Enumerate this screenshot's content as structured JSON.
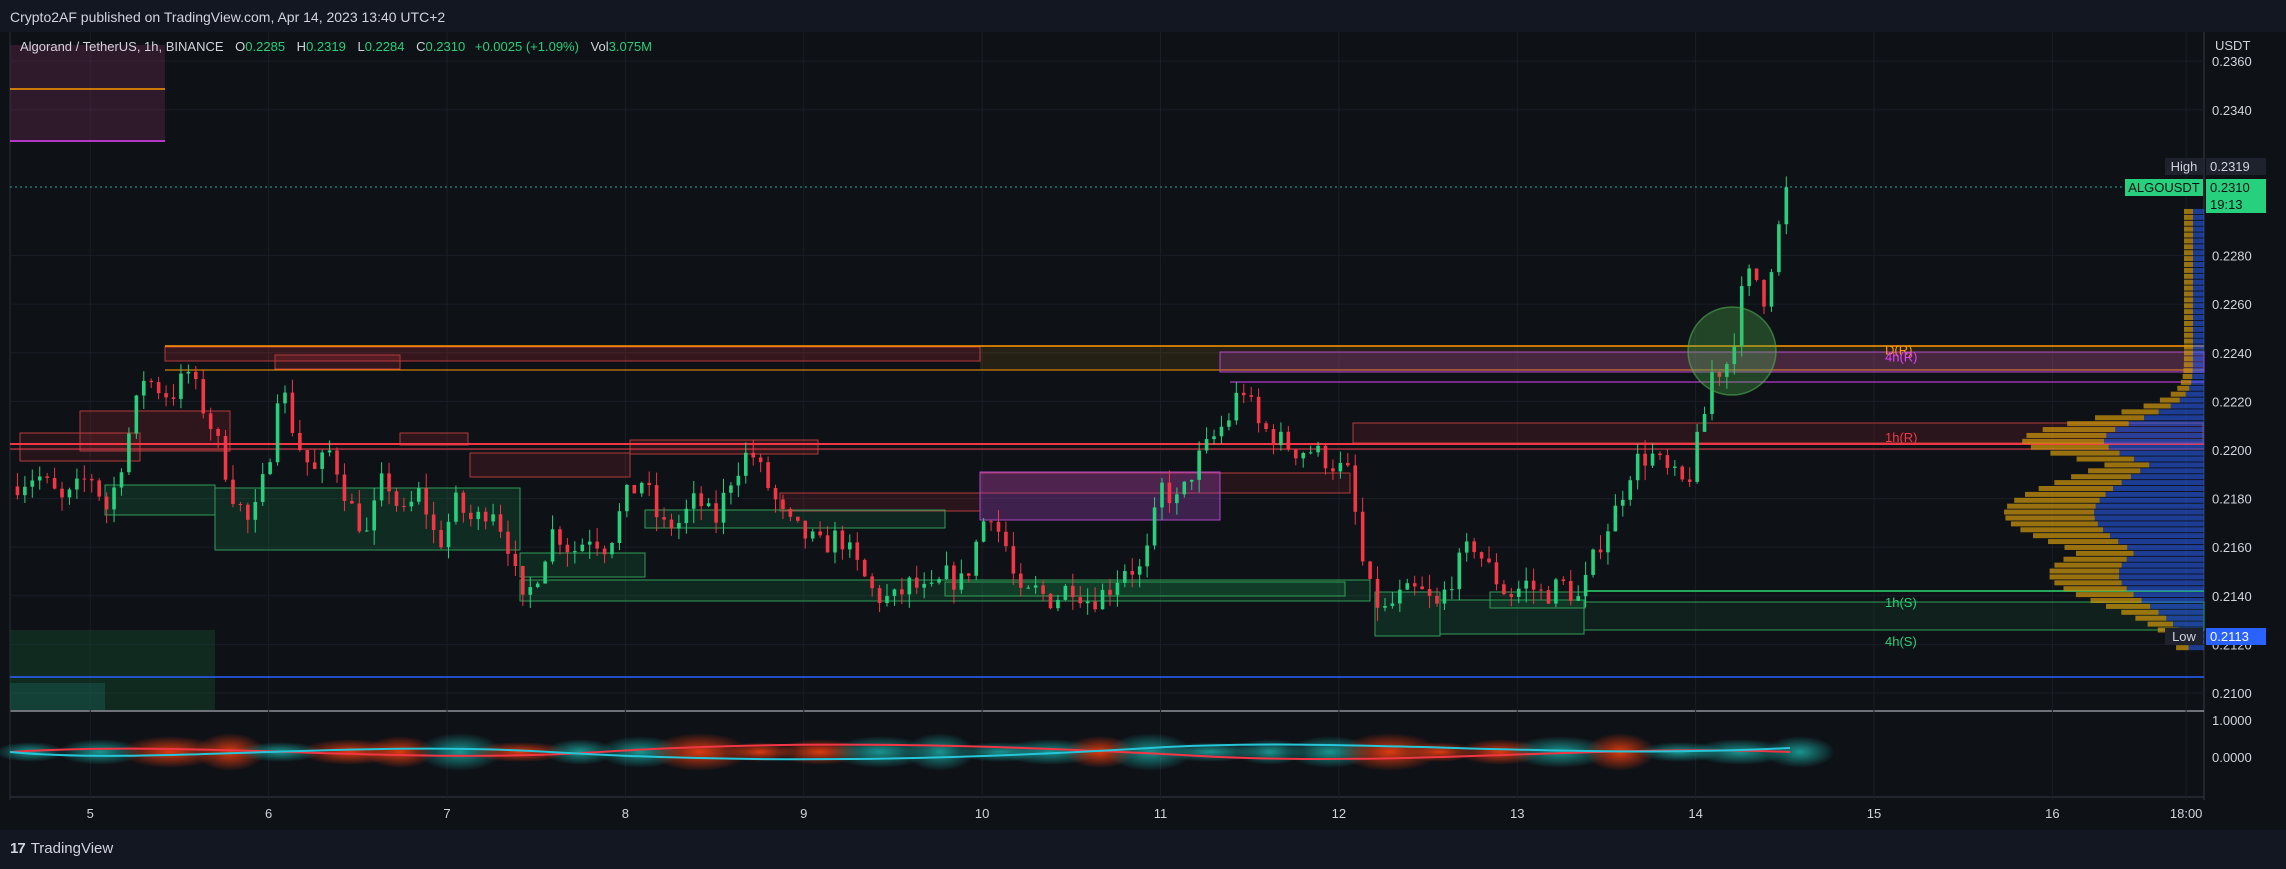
{
  "header": {
    "publish_text": "Crypto2AF published on TradingView.com, Apr 14, 2023 13:40 UTC+2"
  },
  "legend": {
    "symbol": "Algorand / TetherUS, 1h, BINANCE",
    "open_key": "O",
    "open": "0.2285",
    "high_key": "H",
    "high": "0.2319",
    "low_key": "L",
    "low": "0.2284",
    "close_key": "C",
    "close": "0.2310",
    "change": "+0.0025 (+1.09%)",
    "vol_key": "Vol",
    "vol": "3.075M"
  },
  "footer": {
    "brand": "TradingView",
    "brand_glyph": "17"
  },
  "colors": {
    "background": "#0e1116",
    "up": "#26d07c",
    "down": "#f23645",
    "grid": "#1a1e27",
    "axis_text": "#d1d4dc",
    "vp_blue": "#2962ff",
    "vp_orange": "#c8930e"
  },
  "chart_data": {
    "type": "candlestick",
    "symbol": "ALGOUSDT",
    "timeframe": "1h",
    "y_axis": {
      "unit": "USDT",
      "ylim": [
        0.2093,
        0.2372
      ],
      "ticks": [
        "0.2360",
        "0.2340",
        "0.2280",
        "0.2260",
        "0.2240",
        "0.2220",
        "0.2200",
        "0.2180",
        "0.2160",
        "0.2140",
        "0.2120",
        "0.2100"
      ]
    },
    "x_axis": {
      "xlim": [
        4.55,
        16.85
      ],
      "ticks": [
        {
          "label": "5",
          "x": 5
        },
        {
          "label": "6",
          "x": 6
        },
        {
          "label": "7",
          "x": 7
        },
        {
          "label": "8",
          "x": 8
        },
        {
          "label": "9",
          "x": 9
        },
        {
          "label": "10",
          "x": 10
        },
        {
          "label": "11",
          "x": 11
        },
        {
          "label": "12",
          "x": 12
        },
        {
          "label": "13",
          "x": 13
        },
        {
          "label": "14",
          "x": 14
        },
        {
          "label": "15",
          "x": 15
        },
        {
          "label": "16",
          "x": 16
        },
        {
          "label": "18:00",
          "x": 16.75
        }
      ]
    },
    "price_marks": {
      "high_label": "High",
      "high_value": "0.2319",
      "symbol_label": "ALGOUSDT",
      "last_value": "0.2310",
      "countdown": "19:13",
      "low_label": "Low",
      "low_value": "0.2113"
    },
    "level_labels": [
      {
        "text": "D(R)",
        "y": 0.2241,
        "color": "#ff9800"
      },
      {
        "text": "4h(R)",
        "y": 0.2238,
        "color": "#e040fb"
      },
      {
        "text": "1h(R)",
        "y": 0.2205,
        "color": "#f23645"
      },
      {
        "text": "1h(S)",
        "y": 0.2137,
        "color": "#26d07c"
      },
      {
        "text": "4h(S)",
        "y": 0.2121,
        "color": "#26d07c"
      }
    ],
    "anchors": [
      [
        4.55,
        0.2185
      ],
      [
        4.7,
        0.219
      ],
      [
        4.85,
        0.2178
      ],
      [
        5.0,
        0.219
      ],
      [
        5.1,
        0.2175
      ],
      [
        5.2,
        0.2202
      ],
      [
        5.3,
        0.223
      ],
      [
        5.45,
        0.2222
      ],
      [
        5.55,
        0.2232
      ],
      [
        5.7,
        0.2206
      ],
      [
        5.8,
        0.2182
      ],
      [
        5.9,
        0.2168
      ],
      [
        6.0,
        0.2195
      ],
      [
        6.06,
        0.223
      ],
      [
        6.15,
        0.2205
      ],
      [
        6.25,
        0.219
      ],
      [
        6.35,
        0.22
      ],
      [
        6.45,
        0.2178
      ],
      [
        6.55,
        0.2165
      ],
      [
        6.65,
        0.219
      ],
      [
        6.75,
        0.2172
      ],
      [
        6.85,
        0.2183
      ],
      [
        6.95,
        0.216
      ],
      [
        7.05,
        0.2178
      ],
      [
        7.15,
        0.217
      ],
      [
        7.25,
        0.2178
      ],
      [
        7.35,
        0.216
      ],
      [
        7.42,
        0.2135
      ],
      [
        7.5,
        0.2148
      ],
      [
        7.6,
        0.2168
      ],
      [
        7.7,
        0.2158
      ],
      [
        7.8,
        0.2165
      ],
      [
        7.9,
        0.216
      ],
      [
        8.0,
        0.218
      ],
      [
        8.1,
        0.2188
      ],
      [
        8.2,
        0.2168
      ],
      [
        8.3,
        0.217
      ],
      [
        8.4,
        0.218
      ],
      [
        8.5,
        0.217
      ],
      [
        8.6,
        0.219
      ],
      [
        8.7,
        0.22
      ],
      [
        8.8,
        0.2185
      ],
      [
        8.9,
        0.217
      ],
      [
        9.0,
        0.2165
      ],
      [
        9.1,
        0.216
      ],
      [
        9.2,
        0.2165
      ],
      [
        9.3,
        0.2152
      ],
      [
        9.4,
        0.214
      ],
      [
        9.5,
        0.2138
      ],
      [
        9.6,
        0.2145
      ],
      [
        9.7,
        0.214
      ],
      [
        9.8,
        0.2148
      ],
      [
        9.9,
        0.2145
      ],
      [
        10.0,
        0.217
      ],
      [
        10.05,
        0.2175
      ],
      [
        10.1,
        0.2165
      ],
      [
        10.15,
        0.2158
      ],
      [
        10.2,
        0.2138
      ],
      [
        10.3,
        0.2142
      ],
      [
        10.4,
        0.2138
      ],
      [
        10.5,
        0.2145
      ],
      [
        10.6,
        0.2138
      ],
      [
        10.7,
        0.2142
      ],
      [
        10.8,
        0.2152
      ],
      [
        10.9,
        0.215
      ],
      [
        10.95,
        0.2165
      ],
      [
        11.0,
        0.2185
      ],
      [
        11.1,
        0.2178
      ],
      [
        11.2,
        0.2195
      ],
      [
        11.3,
        0.2205
      ],
      [
        11.4,
        0.2215
      ],
      [
        11.45,
        0.2228
      ],
      [
        11.55,
        0.221
      ],
      [
        11.65,
        0.2205
      ],
      [
        11.75,
        0.22
      ],
      [
        11.85,
        0.22
      ],
      [
        11.95,
        0.2195
      ],
      [
        12.05,
        0.219
      ],
      [
        12.1,
        0.217
      ],
      [
        12.15,
        0.2145
      ],
      [
        12.25,
        0.2133
      ],
      [
        12.35,
        0.214
      ],
      [
        12.45,
        0.2142
      ],
      [
        12.55,
        0.2135
      ],
      [
        12.65,
        0.215
      ],
      [
        12.75,
        0.2162
      ],
      [
        12.85,
        0.215
      ],
      [
        12.95,
        0.214
      ],
      [
        13.05,
        0.2145
      ],
      [
        13.15,
        0.214
      ],
      [
        13.25,
        0.2145
      ],
      [
        13.35,
        0.2138
      ],
      [
        13.45,
        0.216
      ],
      [
        13.55,
        0.2175
      ],
      [
        13.65,
        0.2195
      ],
      [
        13.75,
        0.2198
      ],
      [
        13.85,
        0.219
      ],
      [
        13.95,
        0.2185
      ],
      [
        14.0,
        0.22
      ],
      [
        14.05,
        0.2215
      ],
      [
        14.1,
        0.2235
      ],
      [
        14.15,
        0.2232
      ],
      [
        14.2,
        0.224
      ],
      [
        14.25,
        0.2262
      ],
      [
        14.32,
        0.2275
      ],
      [
        14.38,
        0.2262
      ],
      [
        14.44,
        0.2282
      ],
      [
        14.52,
        0.231
      ]
    ]
  }
}
